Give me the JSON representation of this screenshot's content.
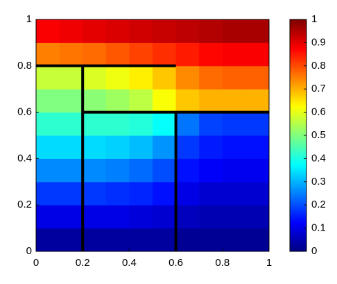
{
  "chart_data": {
    "type": "heatmap",
    "colormap": "jet",
    "xlim": [
      0,
      1
    ],
    "ylim": [
      0,
      1
    ],
    "xticks": [
      0,
      0.2,
      0.4,
      0.6,
      0.8,
      1
    ],
    "yticks": [
      0,
      0.2,
      0.4,
      0.6,
      0.8,
      1
    ],
    "x": [
      0.05,
      0.15,
      0.25,
      0.35,
      0.45,
      0.55,
      0.65,
      0.75,
      0.85,
      0.95
    ],
    "y": [
      0.05,
      0.15,
      0.25,
      0.35,
      0.45,
      0.55,
      0.65,
      0.75,
      0.85,
      0.95
    ],
    "z": [
      [
        0.03,
        0.03,
        0.03,
        0.03,
        0.03,
        0.03,
        0.02,
        0.02,
        0.02,
        0.02
      ],
      [
        0.1,
        0.1,
        0.1,
        0.1,
        0.09,
        0.08,
        0.06,
        0.05,
        0.05,
        0.05
      ],
      [
        0.18,
        0.18,
        0.18,
        0.17,
        0.16,
        0.14,
        0.1,
        0.08,
        0.08,
        0.08
      ],
      [
        0.26,
        0.26,
        0.26,
        0.25,
        0.23,
        0.2,
        0.14,
        0.12,
        0.11,
        0.11
      ],
      [
        0.34,
        0.34,
        0.34,
        0.33,
        0.31,
        0.27,
        0.18,
        0.15,
        0.14,
        0.14
      ],
      [
        0.42,
        0.42,
        0.42,
        0.42,
        0.41,
        0.38,
        0.24,
        0.19,
        0.18,
        0.18
      ],
      [
        0.5,
        0.5,
        0.51,
        0.53,
        0.56,
        0.62,
        0.68,
        0.7,
        0.7,
        0.7
      ],
      [
        0.57,
        0.57,
        0.59,
        0.61,
        0.64,
        0.68,
        0.74,
        0.77,
        0.78,
        0.78
      ],
      [
        0.75,
        0.76,
        0.77,
        0.79,
        0.81,
        0.83,
        0.85,
        0.87,
        0.88,
        0.88
      ],
      [
        0.88,
        0.89,
        0.9,
        0.91,
        0.92,
        0.93,
        0.94,
        0.95,
        0.96,
        0.96
      ]
    ],
    "segments": [
      {
        "x": [
          0,
          0.6
        ],
        "y": [
          0.8,
          0.8
        ]
      },
      {
        "x": [
          0.2,
          0.2
        ],
        "y": [
          0,
          0.8
        ]
      },
      {
        "x": [
          0.2,
          1
        ],
        "y": [
          0.6,
          0.6
        ]
      },
      {
        "x": [
          0.6,
          0.6
        ],
        "y": [
          0,
          0.6
        ]
      }
    ],
    "segment_color": "#000000",
    "clim": [
      0,
      1
    ],
    "cticks": [
      0,
      0.1,
      0.2,
      0.3,
      0.4,
      0.5,
      0.6,
      0.7,
      0.8,
      0.9,
      1
    ]
  }
}
